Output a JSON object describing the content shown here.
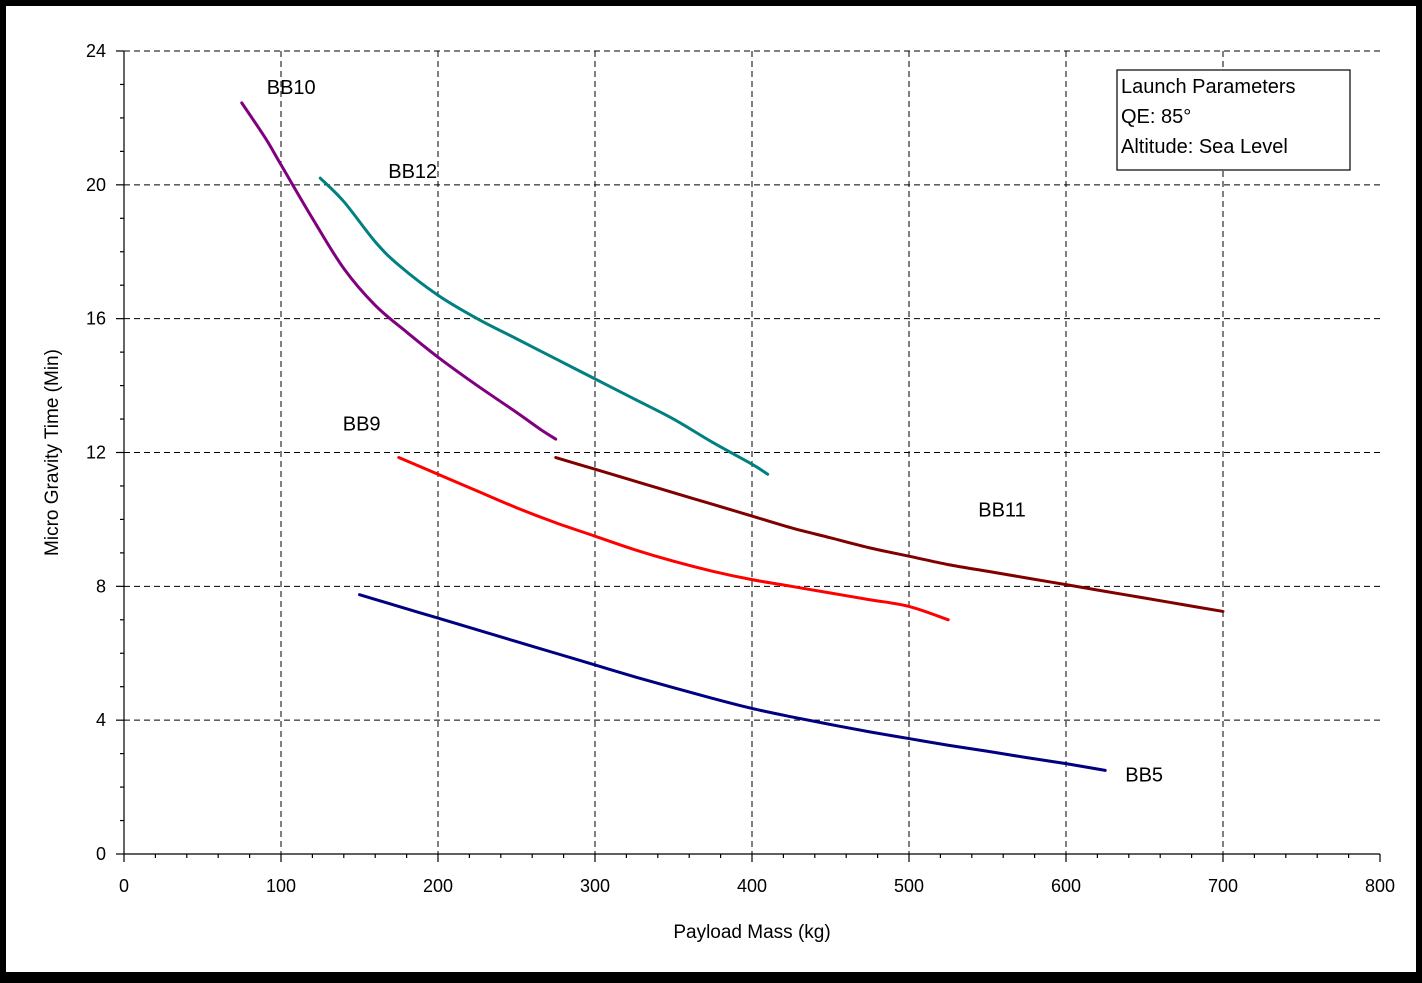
{
  "chart_data": {
    "type": "line",
    "title": "",
    "xlabel": "Payload Mass (kg)",
    "ylabel": "Micro Gravity Time (Min)",
    "xlim": [
      0,
      800
    ],
    "ylim": [
      0,
      24
    ],
    "x_ticks": [
      0,
      100,
      200,
      300,
      400,
      500,
      600,
      700,
      800
    ],
    "y_ticks": [
      0,
      4,
      8,
      12,
      16,
      20,
      24
    ],
    "x_tick_labels": [
      "0",
      "100",
      "200",
      "300",
      "400",
      "500",
      "600",
      "700",
      "800"
    ],
    "y_tick_labels": [
      "0",
      "4",
      "8",
      "12",
      "16",
      "20",
      "24"
    ],
    "grid": true,
    "annotation": {
      "placement": "top-right",
      "lines": [
        "Launch Parameters",
        "QE: 85°",
        "Altitude: Sea Level"
      ]
    },
    "series": [
      {
        "name": "BB10",
        "color": "#800080",
        "points": [
          [
            75,
            22.45
          ],
          [
            90,
            21.4
          ],
          [
            100,
            20.6
          ],
          [
            120,
            19.0
          ],
          [
            140,
            17.5
          ],
          [
            160,
            16.4
          ],
          [
            180,
            15.6
          ],
          [
            200,
            14.85
          ],
          [
            225,
            14.0
          ],
          [
            250,
            13.2
          ],
          [
            265,
            12.7
          ],
          [
            275,
            12.4
          ]
        ]
      },
      {
        "name": "BB12",
        "color": "#008080",
        "points": [
          [
            125,
            20.2
          ],
          [
            140,
            19.5
          ],
          [
            160,
            18.3
          ],
          [
            175,
            17.6
          ],
          [
            200,
            16.7
          ],
          [
            225,
            16.0
          ],
          [
            250,
            15.4
          ],
          [
            275,
            14.8
          ],
          [
            300,
            14.2
          ],
          [
            325,
            13.6
          ],
          [
            350,
            13.0
          ],
          [
            375,
            12.3
          ],
          [
            400,
            11.65
          ],
          [
            410,
            11.35
          ]
        ]
      },
      {
        "name": "BB9",
        "color": "#FF0000",
        "points": [
          [
            175,
            11.85
          ],
          [
            200,
            11.35
          ],
          [
            225,
            10.85
          ],
          [
            250,
            10.35
          ],
          [
            275,
            9.9
          ],
          [
            300,
            9.5
          ],
          [
            325,
            9.1
          ],
          [
            350,
            8.75
          ],
          [
            375,
            8.45
          ],
          [
            400,
            8.2
          ],
          [
            425,
            8.0
          ],
          [
            450,
            7.8
          ],
          [
            475,
            7.6
          ],
          [
            500,
            7.4
          ],
          [
            525,
            7.0
          ]
        ]
      },
      {
        "name": "BB11",
        "color": "#800000",
        "points": [
          [
            275,
            11.85
          ],
          [
            300,
            11.5
          ],
          [
            325,
            11.15
          ],
          [
            350,
            10.8
          ],
          [
            375,
            10.45
          ],
          [
            400,
            10.1
          ],
          [
            425,
            9.75
          ],
          [
            450,
            9.45
          ],
          [
            475,
            9.15
          ],
          [
            500,
            8.9
          ],
          [
            525,
            8.65
          ],
          [
            550,
            8.45
          ],
          [
            575,
            8.25
          ],
          [
            600,
            8.05
          ],
          [
            625,
            7.85
          ],
          [
            650,
            7.65
          ],
          [
            675,
            7.45
          ],
          [
            700,
            7.25
          ]
        ]
      },
      {
        "name": "BB5",
        "color": "#000080",
        "points": [
          [
            150,
            7.75
          ],
          [
            175,
            7.4
          ],
          [
            200,
            7.05
          ],
          [
            225,
            6.7
          ],
          [
            250,
            6.35
          ],
          [
            275,
            6.0
          ],
          [
            300,
            5.65
          ],
          [
            325,
            5.3
          ],
          [
            350,
            4.97
          ],
          [
            375,
            4.65
          ],
          [
            400,
            4.35
          ],
          [
            425,
            4.1
          ],
          [
            450,
            3.87
          ],
          [
            475,
            3.65
          ],
          [
            500,
            3.45
          ],
          [
            525,
            3.25
          ],
          [
            550,
            3.07
          ],
          [
            575,
            2.88
          ],
          [
            600,
            2.7
          ],
          [
            625,
            2.5
          ]
        ]
      }
    ]
  }
}
